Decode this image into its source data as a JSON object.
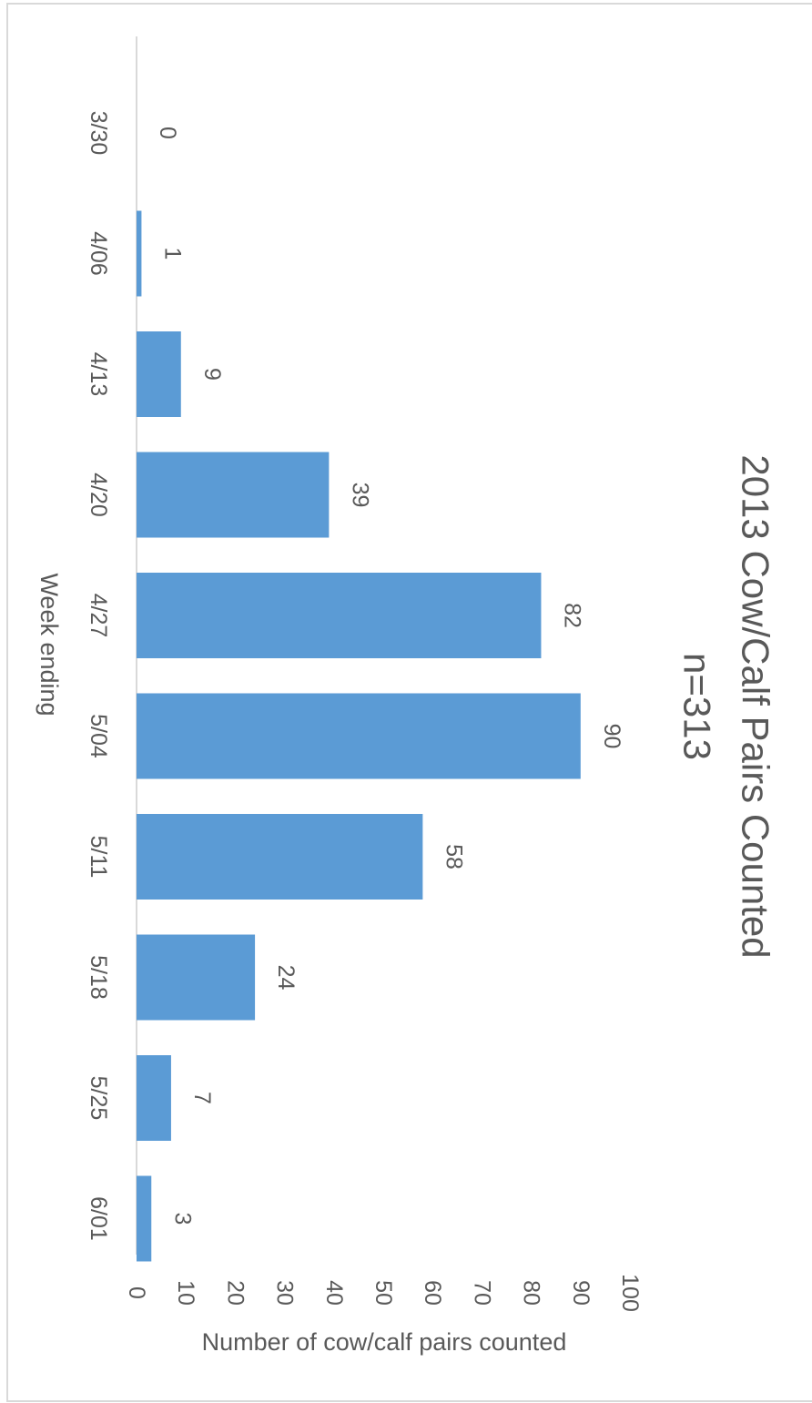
{
  "chart_data": {
    "type": "bar",
    "title": "2013 Cow/Calf Pairs Counted",
    "subtitle": "n=313",
    "xlabel": "Week ending",
    "ylabel": "Number of cow/calf pairs counted",
    "categories": [
      "3/30",
      "4/06",
      "4/13",
      "4/20",
      "4/27",
      "5/04",
      "5/11",
      "5/18",
      "5/25",
      "6/01"
    ],
    "values": [
      0,
      1,
      9,
      39,
      82,
      90,
      58,
      24,
      7,
      3
    ],
    "data_labels": [
      "0",
      "1",
      "9",
      "39",
      "82",
      "90",
      "58",
      "24",
      "7",
      "3"
    ],
    "ylim": [
      0,
      100
    ],
    "yticks": [
      0,
      10,
      20,
      30,
      40,
      50,
      60,
      70,
      80,
      90,
      100
    ],
    "ytick_labels": [
      "0",
      "10",
      "20",
      "30",
      "40",
      "50",
      "60",
      "70",
      "80",
      "90",
      "100"
    ],
    "grid": false,
    "legend": "none",
    "orientation": "rotated-90-clockwise",
    "bar_color": "#5b9bd5",
    "text_color": "#595959",
    "axis_color": "#d9d9d9"
  }
}
